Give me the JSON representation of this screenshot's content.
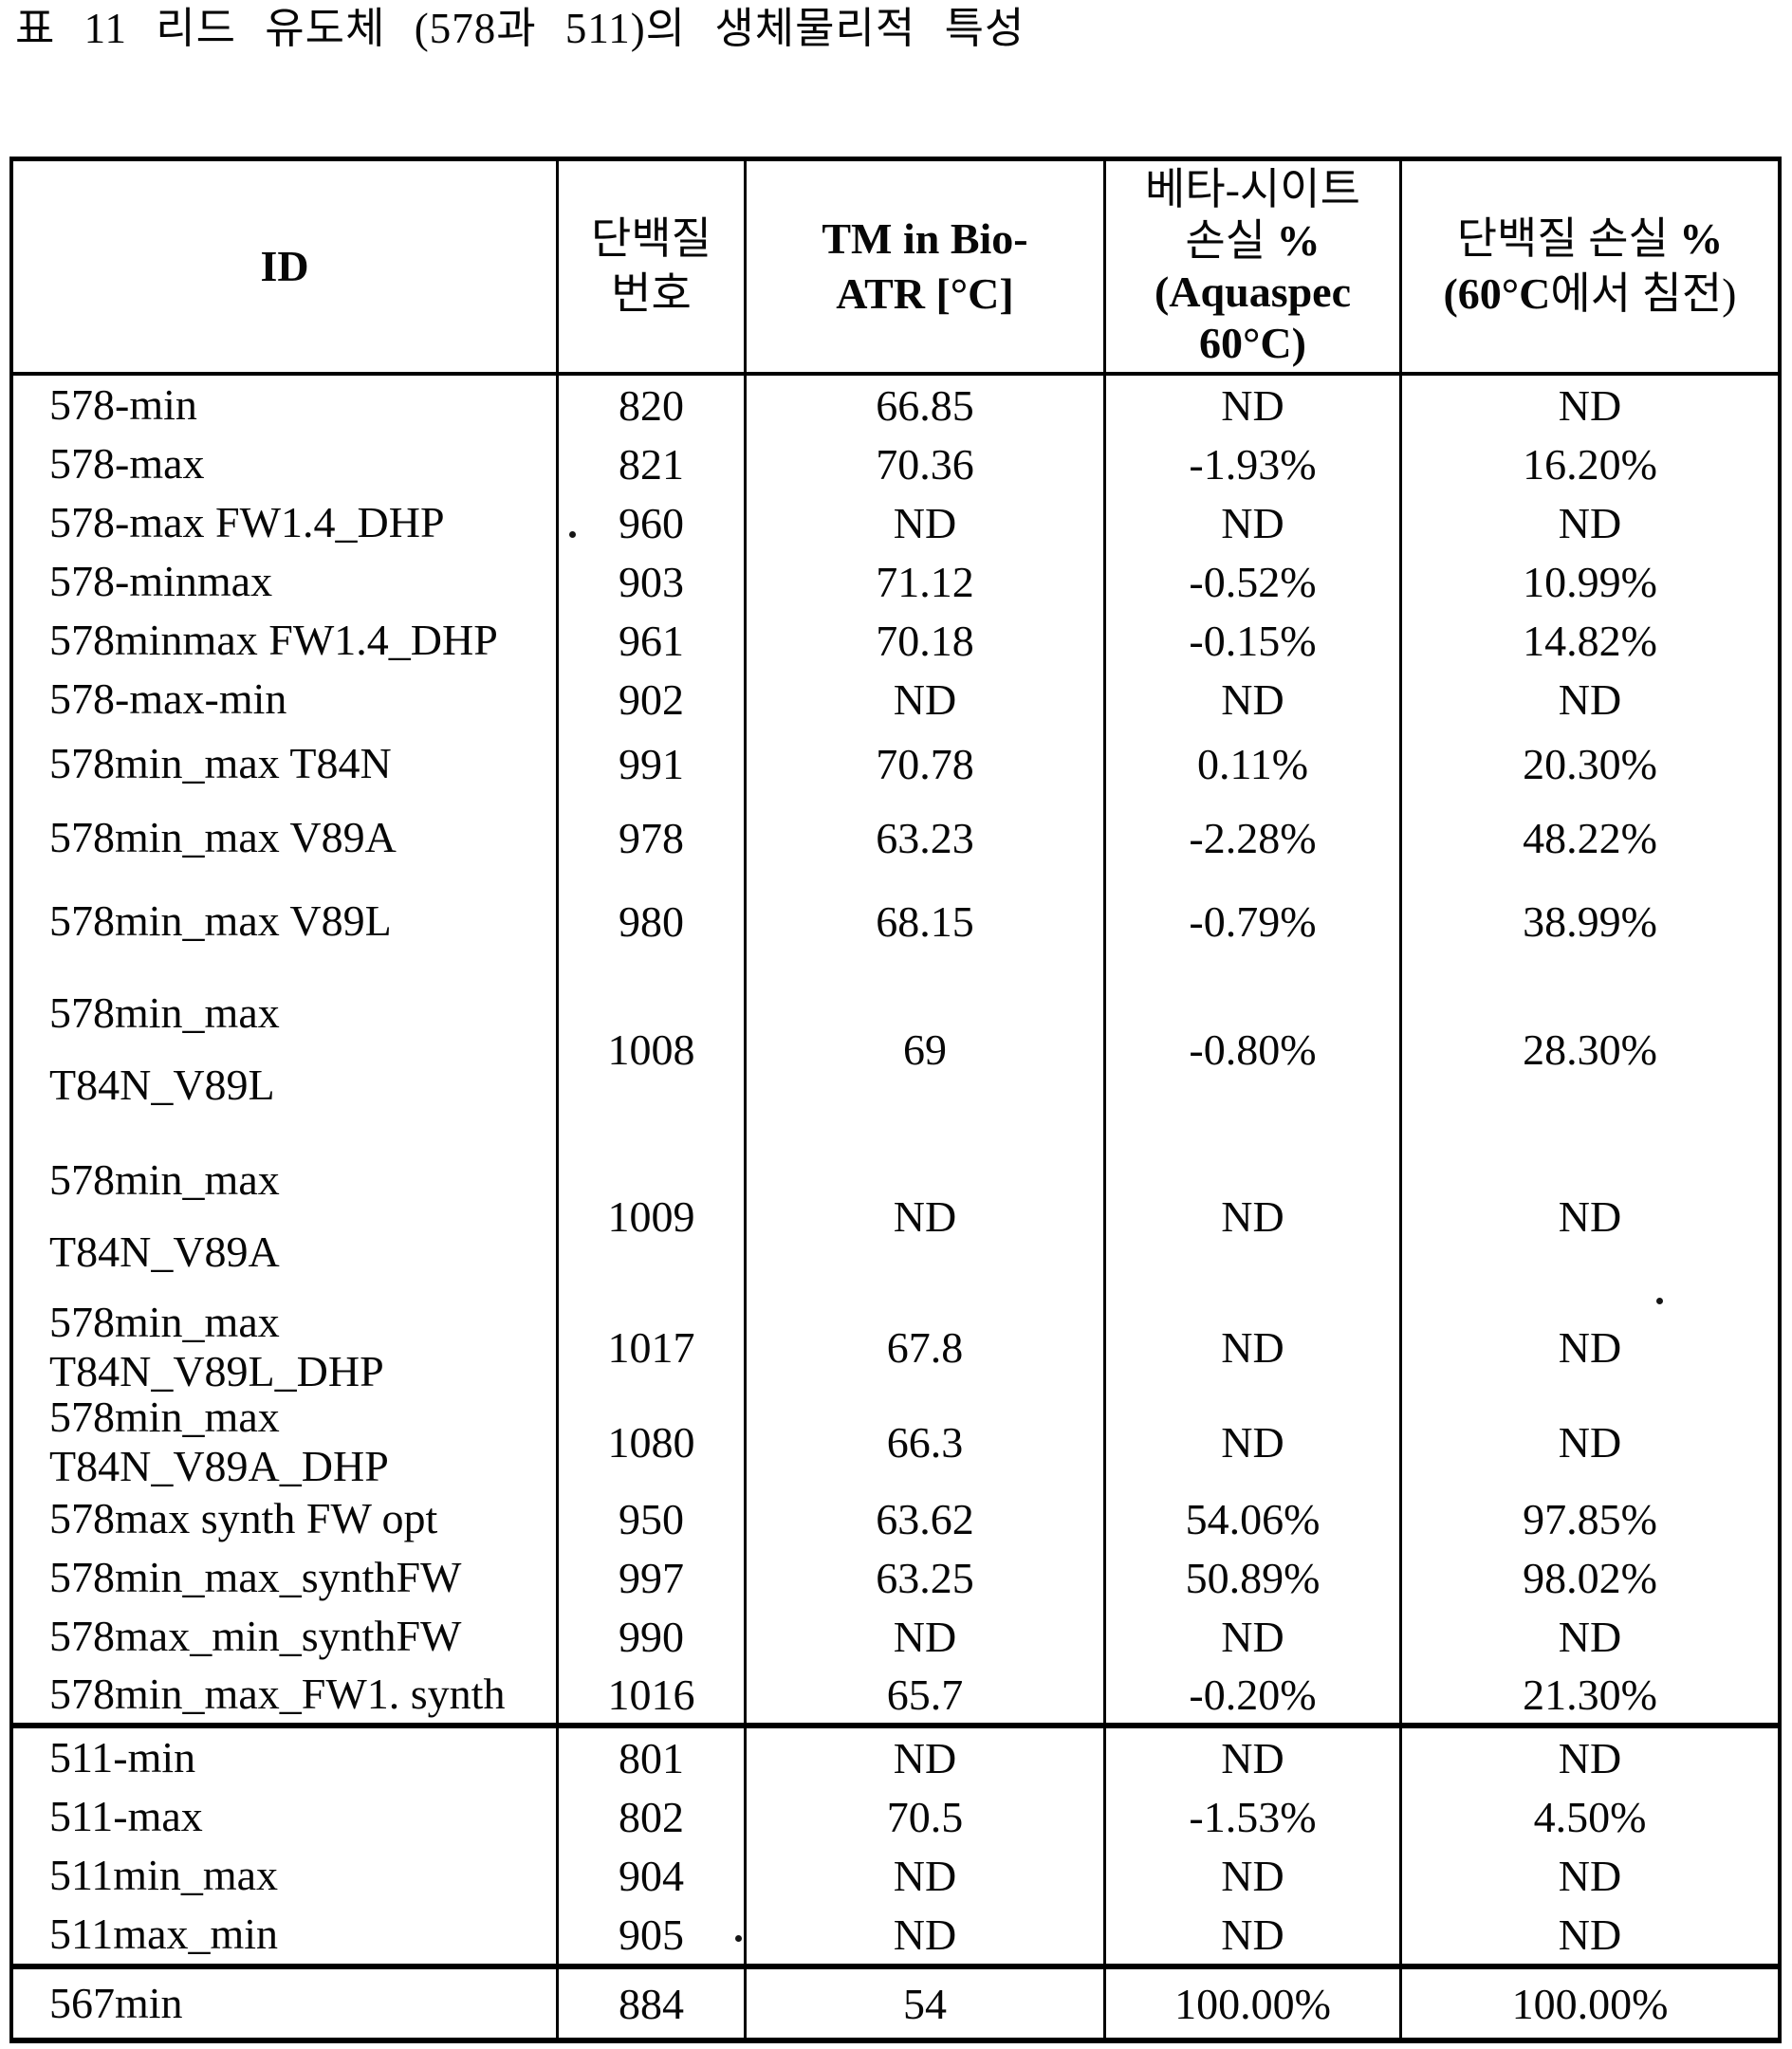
{
  "title": "표 11 리드 유도체 (578과 511)의 생체물리적 특성",
  "table": {
    "headers": [
      {
        "name": "id",
        "lines": [
          [
            {
              "t": "ID",
              "b": true
            }
          ]
        ]
      },
      {
        "name": "protein-number",
        "lines": [
          [
            {
              "t": "단백질"
            }
          ],
          [
            {
              "t": "번호"
            }
          ]
        ]
      },
      {
        "name": "tm-bio-atr",
        "lines": [
          [
            {
              "t": "TM in Bio-",
              "b": true
            }
          ],
          [
            {
              "t": "ATR [°C]",
              "b": true
            }
          ]
        ]
      },
      {
        "name": "beta-sheet-loss",
        "lines": [
          [
            {
              "t": "베타-시이트"
            }
          ],
          [
            {
              "t": "손실 "
            },
            {
              "t": "%",
              "b": true
            }
          ],
          [
            {
              "t": "(Aquaspec",
              "b": true
            }
          ],
          [
            {
              "t": "60°C)",
              "b": true
            }
          ]
        ]
      },
      {
        "name": "protein-loss",
        "lines": [
          [
            {
              "t": "단백질 손실 "
            },
            {
              "t": "%",
              "b": true
            }
          ],
          [
            {
              "t": "(60°C",
              "b": true
            },
            {
              "t": "에서 침전)"
            }
          ]
        ]
      }
    ],
    "sections": [
      {
        "rows": [
          {
            "id": [
              "578-min"
            ],
            "no": "820",
            "tm": "66.85",
            "beta": "ND",
            "loss": "ND"
          },
          {
            "id": [
              "578-max"
            ],
            "no": "821",
            "tm": "70.36",
            "beta": "-1.93%",
            "loss": "16.20%"
          },
          {
            "id": [
              "578-max FW1.4_DHP"
            ],
            "no": "960",
            "tm": "ND",
            "beta": "ND",
            "loss": "ND"
          },
          {
            "id": [
              "578-minmax"
            ],
            "no": "903",
            "tm": "71.12",
            "beta": "-0.52%",
            "loss": "10.99%"
          },
          {
            "id": [
              "578minmax FW1.4_DHP"
            ],
            "no": "961",
            "tm": "70.18",
            "beta": "-0.15%",
            "loss": "14.82%"
          },
          {
            "id": [
              "578-max-min"
            ],
            "no": "902",
            "tm": "ND",
            "beta": "ND",
            "loss": "ND"
          },
          {
            "id": [
              "578min_max T84N"
            ],
            "no": "991",
            "tm": "70.78",
            "beta": "0.11%",
            "loss": "20.30%"
          },
          {
            "id": [
              "578min_max V89A"
            ],
            "no": "978",
            "tm": "63.23",
            "beta": "-2.28%",
            "loss": "48.22%"
          },
          {
            "id": [
              "578min_max V89L"
            ],
            "no": "980",
            "tm": "68.15",
            "beta": "-0.79%",
            "loss": "38.99%"
          },
          {
            "id": [
              "578min_max",
              "T84N_V89L"
            ],
            "no": "1008",
            "tm": "69",
            "beta": "-0.80%",
            "loss": "28.30%"
          },
          {
            "id": [
              "578min_max",
              "T84N_V89A"
            ],
            "no": "1009",
            "tm": "ND",
            "beta": "ND",
            "loss": "ND"
          },
          {
            "id": [
              "578min_max",
              "T84N_V89L_DHP"
            ],
            "no": "1017",
            "tm": "67.8",
            "beta": "ND",
            "loss": "ND"
          },
          {
            "id": [
              "578min_max",
              "T84N_V89A_DHP"
            ],
            "no": "1080",
            "tm": "66.3",
            "beta": "ND",
            "loss": "ND"
          },
          {
            "id": [
              "578max synth FW opt"
            ],
            "no": "950",
            "tm": "63.62",
            "beta": "54.06%",
            "loss": "97.85%"
          },
          {
            "id": [
              "578min_max_synthFW"
            ],
            "no": "997",
            "tm": "63.25",
            "beta": "50.89%",
            "loss": "98.02%"
          },
          {
            "id": [
              "578max_min_synthFW"
            ],
            "no": "990",
            "tm": "ND",
            "beta": "ND",
            "loss": "ND"
          },
          {
            "id": [
              "578min_max_FW1. synth"
            ],
            "no": "1016",
            "tm": "65.7",
            "beta": "-0.20%",
            "loss": "21.30%"
          }
        ]
      },
      {
        "rows": [
          {
            "id": [
              "511-min"
            ],
            "no": "801",
            "tm": "ND",
            "beta": "ND",
            "loss": "ND"
          },
          {
            "id": [
              "511-max"
            ],
            "no": "802",
            "tm": "70.5",
            "beta": "-1.53%",
            "loss": "4.50%"
          },
          {
            "id": [
              "511min_max"
            ],
            "no": "904",
            "tm": "ND",
            "beta": "ND",
            "loss": "ND"
          },
          {
            "id": [
              "511max_min"
            ],
            "no": "905",
            "tm": "ND",
            "beta": "ND",
            "loss": "ND"
          }
        ]
      },
      {
        "rows": [
          {
            "id": [
              "567min"
            ],
            "no": "884",
            "tm": "54",
            "beta": "100.00%",
            "loss": "100.00%"
          }
        ]
      }
    ]
  }
}
